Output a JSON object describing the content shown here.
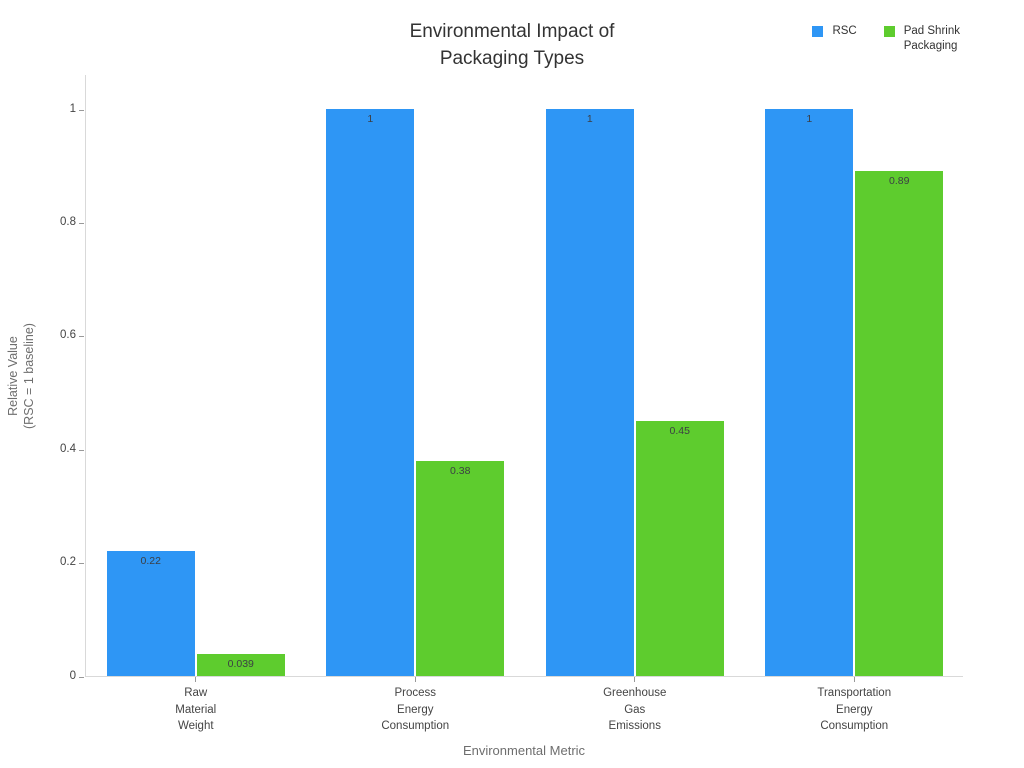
{
  "chart_data": {
    "type": "bar",
    "title": "Environmental Impact of\nPackaging Types",
    "xlabel": "Environmental Metric",
    "ylabel": "Relative Value\n(RSC = 1 baseline)",
    "categories": [
      "Raw\nMaterial\nWeight",
      "Process\nEnergy\nConsumption",
      "Greenhouse\nGas\nEmissions",
      "Transportation\nEnergy\nConsumption"
    ],
    "series": [
      {
        "name": "RSC",
        "color": "#2E96F5",
        "values": [
          0.22,
          1,
          1,
          1
        ],
        "value_labels": [
          "0.22",
          "1",
          "1",
          "1"
        ]
      },
      {
        "name": "Pad Shrink\nPackaging",
        "color": "#5ECC2E",
        "values": [
          0.039,
          0.38,
          0.45,
          0.89
        ],
        "value_labels": [
          "0.039",
          "0.38",
          "0.45",
          "0.89"
        ]
      }
    ],
    "yticks": {
      "values": [
        0,
        0.2,
        0.4,
        0.6,
        0.8,
        1
      ],
      "labels": [
        "0",
        "0.2",
        "0.4",
        "0.6",
        "0.8",
        "1"
      ]
    },
    "ylim": [
      0,
      1.062
    ],
    "grid": false,
    "legend_position": "top-right",
    "background": "#FFFFFF",
    "axis_color": "#D9D9D9",
    "tick_color": "#999999"
  }
}
